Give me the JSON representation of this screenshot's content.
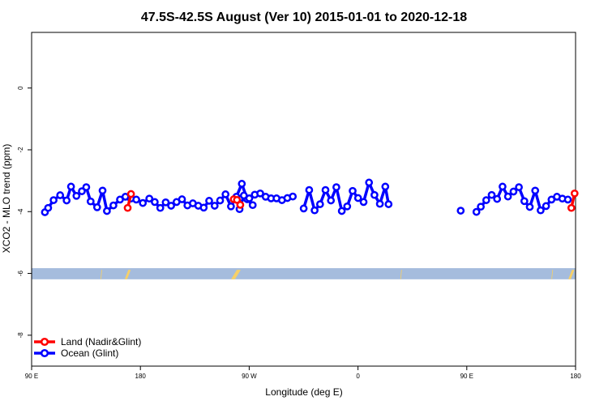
{
  "chart_data": {
    "type": "line",
    "title": "47.5S-42.5S August (Ver 10)   2015-01-01 to 2020-12-18",
    "xlabel": "Longitude (deg E)",
    "ylabel": "XCO2 - MLO trend (ppm)",
    "xlim": [
      90,
      540
    ],
    "ylim": [
      -9.0,
      1.8
    ],
    "x_ticks": [
      {
        "value": 90,
        "label": "90 E"
      },
      {
        "value": 180,
        "label": "180"
      },
      {
        "value": 270,
        "label": "90 W"
      },
      {
        "value": 360,
        "label": "0"
      },
      {
        "value": 450,
        "label": "90 E"
      },
      {
        "value": 540,
        "label": "180"
      }
    ],
    "y_ticks": [
      {
        "value": 0,
        "label": "0"
      },
      {
        "value": -2,
        "label": "-2"
      },
      {
        "value": -4,
        "label": "-4"
      },
      {
        "value": -6,
        "label": "-6"
      },
      {
        "value": -8,
        "label": "-8"
      }
    ],
    "grid": false,
    "legend_position": "bottom-left",
    "series": [
      {
        "name": "Land (Nadir&Glint)",
        "color": "#ff0000",
        "segments": [
          [
            [
              169.5,
              -3.88
            ],
            [
              172.2,
              -3.43
            ]
          ],
          [
            [
              257.2,
              -3.6
            ],
            [
              259.9,
              -3.62
            ],
            [
              262.6,
              -3.78
            ]
          ],
          [
            [
              536.5,
              -3.88
            ],
            [
              539.2,
              -3.41
            ]
          ]
        ]
      },
      {
        "name": "Ocean (Glint)",
        "color": "#0000ff",
        "segments": [
          [
            [
              101.0,
              -4.02
            ],
            [
              103.7,
              -3.88
            ],
            [
              108.2,
              -3.63
            ],
            [
              113.6,
              -3.47
            ],
            [
              119.0,
              -3.64
            ],
            [
              122.6,
              -3.19
            ],
            [
              127.1,
              -3.49
            ],
            [
              131.6,
              -3.34
            ],
            [
              135.2,
              -3.21
            ],
            [
              138.8,
              -3.67
            ],
            [
              144.2,
              -3.86
            ],
            [
              148.7,
              -3.32
            ],
            [
              152.3,
              -3.98
            ],
            [
              157.7,
              -3.8
            ],
            [
              163.1,
              -3.61
            ],
            [
              167.6,
              -3.52
            ],
            [
              172.1,
              -3.58
            ],
            [
              176.6,
              -3.61
            ],
            [
              182.0,
              -3.72
            ],
            [
              187.4,
              -3.58
            ],
            [
              191.9,
              -3.69
            ],
            [
              196.4,
              -3.88
            ],
            [
              200.9,
              -3.7
            ],
            [
              205.4,
              -3.81
            ],
            [
              209.9,
              -3.69
            ],
            [
              214.4,
              -3.6
            ],
            [
              218.9,
              -3.8
            ],
            [
              223.4,
              -3.73
            ],
            [
              227.9,
              -3.81
            ],
            [
              232.4,
              -3.87
            ],
            [
              236.9,
              -3.65
            ],
            [
              241.4,
              -3.81
            ],
            [
              245.9,
              -3.64
            ],
            [
              250.4,
              -3.44
            ],
            [
              254.9,
              -3.83
            ],
            [
              259.4,
              -3.52
            ],
            [
              263.9,
              -3.1
            ],
            [
              268.4,
              -3.6
            ],
            [
              272.9,
              -3.79
            ]
          ],
          [
            [
              262.0,
              -3.92
            ],
            [
              265.6,
              -3.48
            ],
            [
              270.1,
              -3.57
            ],
            [
              274.6,
              -3.45
            ],
            [
              279.1,
              -3.41
            ],
            [
              283.6,
              -3.52
            ],
            [
              288.1,
              -3.57
            ],
            [
              292.6,
              -3.57
            ],
            [
              297.1,
              -3.63
            ],
            [
              301.6,
              -3.56
            ],
            [
              306.1,
              -3.51
            ]
          ],
          [
            [
              315.1,
              -3.9
            ],
            [
              319.6,
              -3.3
            ],
            [
              324.1,
              -3.96
            ],
            [
              328.6,
              -3.76
            ],
            [
              333.1,
              -3.3
            ],
            [
              337.6,
              -3.64
            ],
            [
              342.1,
              -3.21
            ],
            [
              346.6,
              -3.98
            ],
            [
              351.1,
              -3.83
            ],
            [
              355.6,
              -3.33
            ],
            [
              360.1,
              -3.56
            ],
            [
              364.6,
              -3.69
            ],
            [
              369.1,
              -3.06
            ],
            [
              373.6,
              -3.46
            ],
            [
              378.1,
              -3.75
            ],
            [
              382.6,
              -3.19
            ],
            [
              385.3,
              -3.76
            ]
          ]
        ],
        "points": [
          [
            445.0,
            -3.97
          ]
        ]
      },
      {
        "name": "Ocean (Glint)",
        "color": "#0000ff",
        "legend": false,
        "segments": [
          [
            [
              458.0,
              -4.01
            ],
            [
              461.6,
              -3.84
            ],
            [
              466.1,
              -3.63
            ],
            [
              470.6,
              -3.46
            ],
            [
              475.1,
              -3.59
            ],
            [
              479.6,
              -3.19
            ],
            [
              484.1,
              -3.51
            ],
            [
              488.6,
              -3.35
            ],
            [
              493.1,
              -3.21
            ],
            [
              497.6,
              -3.66
            ],
            [
              502.1,
              -3.85
            ],
            [
              506.6,
              -3.32
            ],
            [
              511.1,
              -3.96
            ],
            [
              515.6,
              -3.82
            ],
            [
              520.1,
              -3.61
            ],
            [
              524.6,
              -3.52
            ],
            [
              529.1,
              -3.58
            ],
            [
              533.6,
              -3.61
            ]
          ]
        ]
      }
    ],
    "surface_band": {
      "y_range": [
        -6.19,
        -5.83
      ],
      "ocean_color": "#a5bcdd",
      "land_color": "#f7d067",
      "land_extents": [
        [
          147.0,
          148.0
        ],
        [
          167.0,
          172.0
        ],
        [
          255.0,
          263.0
        ],
        [
          395.0,
          396.0
        ],
        [
          520.0,
          521.0
        ],
        [
          534.0,
          539.0
        ]
      ]
    }
  }
}
